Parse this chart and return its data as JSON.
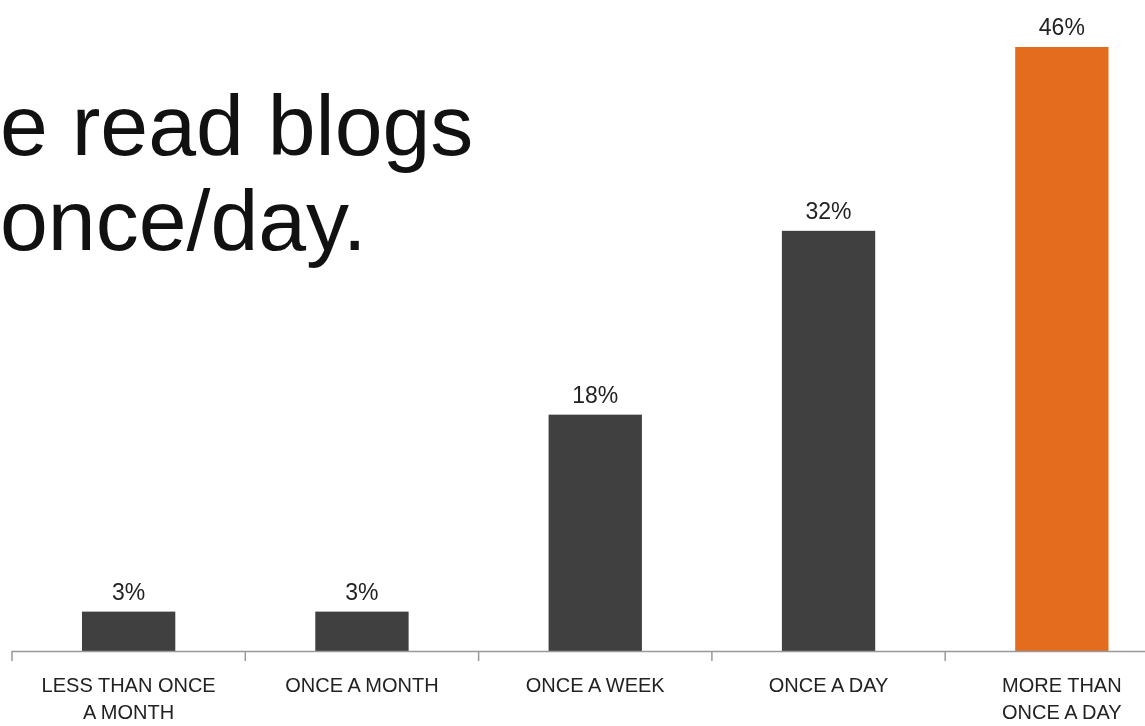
{
  "chart_data": {
    "type": "bar",
    "title": "e read blogs",
    "subtitle": "once/day.",
    "categories": [
      "LESS THAN ONCE A MONTH",
      "ONCE A MONTH",
      "ONCE A WEEK",
      "ONCE A DAY",
      "MORE THAN ONCE A DAY"
    ],
    "values": [
      3,
      3,
      18,
      32,
      46
    ],
    "colors": [
      "#404040",
      "#404040",
      "#404040",
      "#404040",
      "#e36c1f"
    ],
    "value_labels": [
      "3%",
      "3%",
      "18%",
      "32%",
      "46%"
    ]
  }
}
